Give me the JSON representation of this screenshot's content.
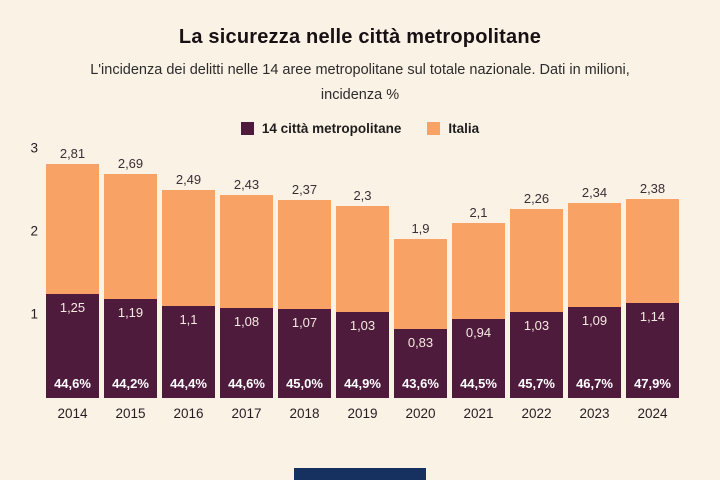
{
  "header": {
    "title": "La sicurezza nelle città metropolitane",
    "subtitle_line1": "L'incidenza dei delitti nelle 14 aree metropolitane sul totale nazionale. Dati in milioni,",
    "subtitle_line2": "incidenza %"
  },
  "legend": {
    "items": [
      {
        "label": "14 città metropolitane",
        "color": "#4f1b3d"
      },
      {
        "label": "Italia",
        "color": "#f9a266"
      }
    ]
  },
  "chart_data": {
    "type": "bar",
    "stacked": true,
    "title": "La sicurezza nelle città metropolitane",
    "xlabel": "",
    "ylabel": "",
    "ylim": [
      0,
      3
    ],
    "grid": false,
    "legend_position": "top",
    "categories": [
      "2014",
      "2015",
      "2016",
      "2017",
      "2018",
      "2019",
      "2020",
      "2021",
      "2022",
      "2023",
      "2024"
    ],
    "series": [
      {
        "name": "14 città metropolitane",
        "color": "#4f1b3d",
        "values": [
          1.25,
          1.19,
          1.1,
          1.08,
          1.07,
          1.03,
          0.83,
          0.94,
          1.03,
          1.09,
          1.14
        ],
        "labels": [
          "1,25",
          "1,19",
          "1,1",
          "1,08",
          "1,07",
          "1,03",
          "0,83",
          "0,94",
          "1,03",
          "1,09",
          "1,14"
        ]
      },
      {
        "name": "Italia",
        "color": "#f9a266",
        "totals": [
          2.81,
          2.69,
          2.49,
          2.43,
          2.37,
          2.3,
          1.9,
          2.1,
          2.26,
          2.34,
          2.38
        ],
        "labels": [
          "2,81",
          "2,69",
          "2,49",
          "2,43",
          "2,37",
          "2,3",
          "1,9",
          "2,1",
          "2,26",
          "2,34",
          "2,38"
        ]
      }
    ],
    "percent_labels": [
      "44,6%",
      "44,2%",
      "44,4%",
      "44,6%",
      "45,0%",
      "44,9%",
      "43,6%",
      "44,5%",
      "45,7%",
      "46,7%",
      "47,9%"
    ],
    "y_ticks": [
      "3",
      "2",
      "1"
    ],
    "y_tick_values": [
      3,
      2,
      1
    ]
  },
  "footer": {
    "bar_color": "#16305f"
  }
}
